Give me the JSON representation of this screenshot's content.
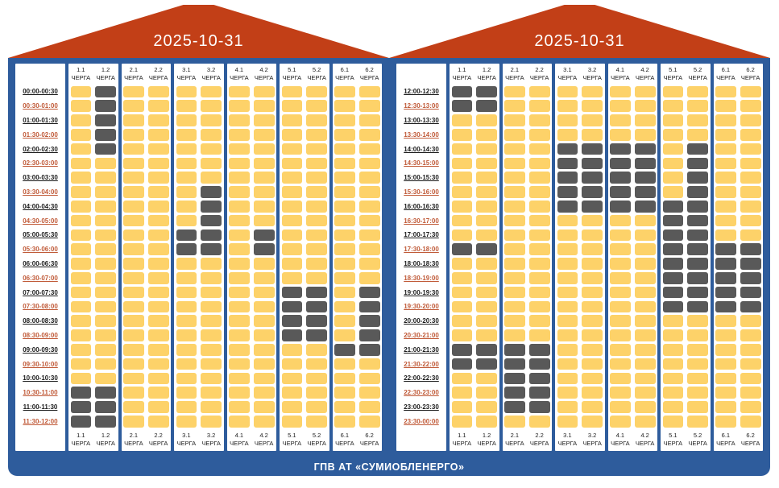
{
  "footer": {
    "label": "ГПВ АТ «СУМИОБЛЕНЕРГО»"
  },
  "colors": {
    "roof": "#C23F17",
    "frame": "#2E5C9C",
    "panel_bg": "#FFFFFF",
    "cell_on": "#FDD269",
    "cell_off": "#595959",
    "time_full_hour": "#1A1A1A",
    "time_half_hour": "#C05A38",
    "footer_bg": "#2E5C9C",
    "footer_text": "#FFFFFF"
  },
  "chart_data": {
    "type": "heatmap",
    "queue_suffix": "ЧЕРГА",
    "queues": [
      "1.1",
      "1.2",
      "2.1",
      "2.2",
      "3.1",
      "3.2",
      "4.1",
      "4.2",
      "5.1",
      "5.2",
      "6.1",
      "6.2"
    ],
    "cell_states": {
      "on": "power-on (yellow)",
      "off": "power-off (dark)"
    },
    "panels": [
      {
        "date": "2025-10-31",
        "rows": [
          {
            "time": "00:00-00:30",
            "off": [
              "1.2"
            ]
          },
          {
            "time": "00:30-01:00",
            "off": [
              "1.2"
            ]
          },
          {
            "time": "01:00-01:30",
            "off": [
              "1.2"
            ]
          },
          {
            "time": "01:30-02:00",
            "off": [
              "1.2"
            ]
          },
          {
            "time": "02:00-02:30",
            "off": [
              "1.2"
            ]
          },
          {
            "time": "02:30-03:00",
            "off": []
          },
          {
            "time": "03:00-03:30",
            "off": []
          },
          {
            "time": "03:30-04:00",
            "off": [
              "3.2"
            ]
          },
          {
            "time": "04:00-04:30",
            "off": [
              "3.2"
            ]
          },
          {
            "time": "04:30-05:00",
            "off": [
              "3.2"
            ]
          },
          {
            "time": "05:00-05:30",
            "off": [
              "3.1",
              "3.2",
              "4.2"
            ]
          },
          {
            "time": "05:30-06:00",
            "off": [
              "3.1",
              "3.2",
              "4.2"
            ]
          },
          {
            "time": "06:00-06:30",
            "off": []
          },
          {
            "time": "06:30-07:00",
            "off": []
          },
          {
            "time": "07:00-07:30",
            "off": [
              "5.1",
              "5.2",
              "6.2"
            ]
          },
          {
            "time": "07:30-08:00",
            "off": [
              "5.1",
              "5.2",
              "6.2"
            ]
          },
          {
            "time": "08:00-08:30",
            "off": [
              "5.1",
              "5.2",
              "6.2"
            ]
          },
          {
            "time": "08:30-09:00",
            "off": [
              "5.1",
              "5.2",
              "6.2"
            ]
          },
          {
            "time": "09:00-09:30",
            "off": [
              "6.1",
              "6.2"
            ]
          },
          {
            "time": "09:30-10:00",
            "off": []
          },
          {
            "time": "10:00-10:30",
            "off": []
          },
          {
            "time": "10:30-11:00",
            "off": [
              "1.1",
              "1.2"
            ]
          },
          {
            "time": "11:00-11:30",
            "off": [
              "1.1",
              "1.2"
            ]
          },
          {
            "time": "11:30-12:00",
            "off": [
              "1.1",
              "1.2"
            ]
          }
        ]
      },
      {
        "date": "2025-10-31",
        "rows": [
          {
            "time": "12:00-12:30",
            "off": [
              "1.1",
              "1.2"
            ]
          },
          {
            "time": "12:30-13:00",
            "off": [
              "1.1",
              "1.2"
            ]
          },
          {
            "time": "13:00-13:30",
            "off": []
          },
          {
            "time": "13:30-14:00",
            "off": []
          },
          {
            "time": "14:00-14:30",
            "off": [
              "3.1",
              "3.2",
              "4.1",
              "4.2",
              "5.2"
            ]
          },
          {
            "time": "14:30-15:00",
            "off": [
              "3.1",
              "3.2",
              "4.1",
              "4.2",
              "5.2"
            ]
          },
          {
            "time": "15:00-15:30",
            "off": [
              "3.1",
              "3.2",
              "4.1",
              "4.2",
              "5.2"
            ]
          },
          {
            "time": "15:30-16:00",
            "off": [
              "3.1",
              "3.2",
              "4.1",
              "4.2",
              "5.2"
            ]
          },
          {
            "time": "16:00-16:30",
            "off": [
              "3.1",
              "3.2",
              "4.1",
              "4.2",
              "5.1",
              "5.2"
            ]
          },
          {
            "time": "16:30-17:00",
            "off": [
              "5.1",
              "5.2"
            ]
          },
          {
            "time": "17:00-17:30",
            "off": [
              "5.1",
              "5.2"
            ]
          },
          {
            "time": "17:30-18:00",
            "off": [
              "1.1",
              "1.2",
              "5.1",
              "5.2",
              "6.1",
              "6.2"
            ]
          },
          {
            "time": "18:00-18:30",
            "off": [
              "5.1",
              "5.2",
              "6.1",
              "6.2"
            ]
          },
          {
            "time": "18:30-19:00",
            "off": [
              "5.1",
              "5.2",
              "6.1",
              "6.2"
            ]
          },
          {
            "time": "19:00-19:30",
            "off": [
              "5.1",
              "5.2",
              "6.1",
              "6.2"
            ]
          },
          {
            "time": "19:30-20:00",
            "off": [
              "5.1",
              "5.2",
              "6.1",
              "6.2"
            ]
          },
          {
            "time": "20:00-20:30",
            "off": []
          },
          {
            "time": "20:30-21:00",
            "off": []
          },
          {
            "time": "21:00-21:30",
            "off": [
              "1.1",
              "1.2",
              "2.1",
              "2.2"
            ]
          },
          {
            "time": "21:30-22:00",
            "off": [
              "1.1",
              "1.2",
              "2.1",
              "2.2"
            ]
          },
          {
            "time": "22:00-22:30",
            "off": [
              "2.1",
              "2.2"
            ]
          },
          {
            "time": "22:30-23:00",
            "off": [
              "2.1",
              "2.2"
            ]
          },
          {
            "time": "23:00-23:30",
            "off": [
              "2.1",
              "2.2"
            ]
          },
          {
            "time": "23:30-00:00",
            "off": []
          }
        ]
      }
    ]
  }
}
